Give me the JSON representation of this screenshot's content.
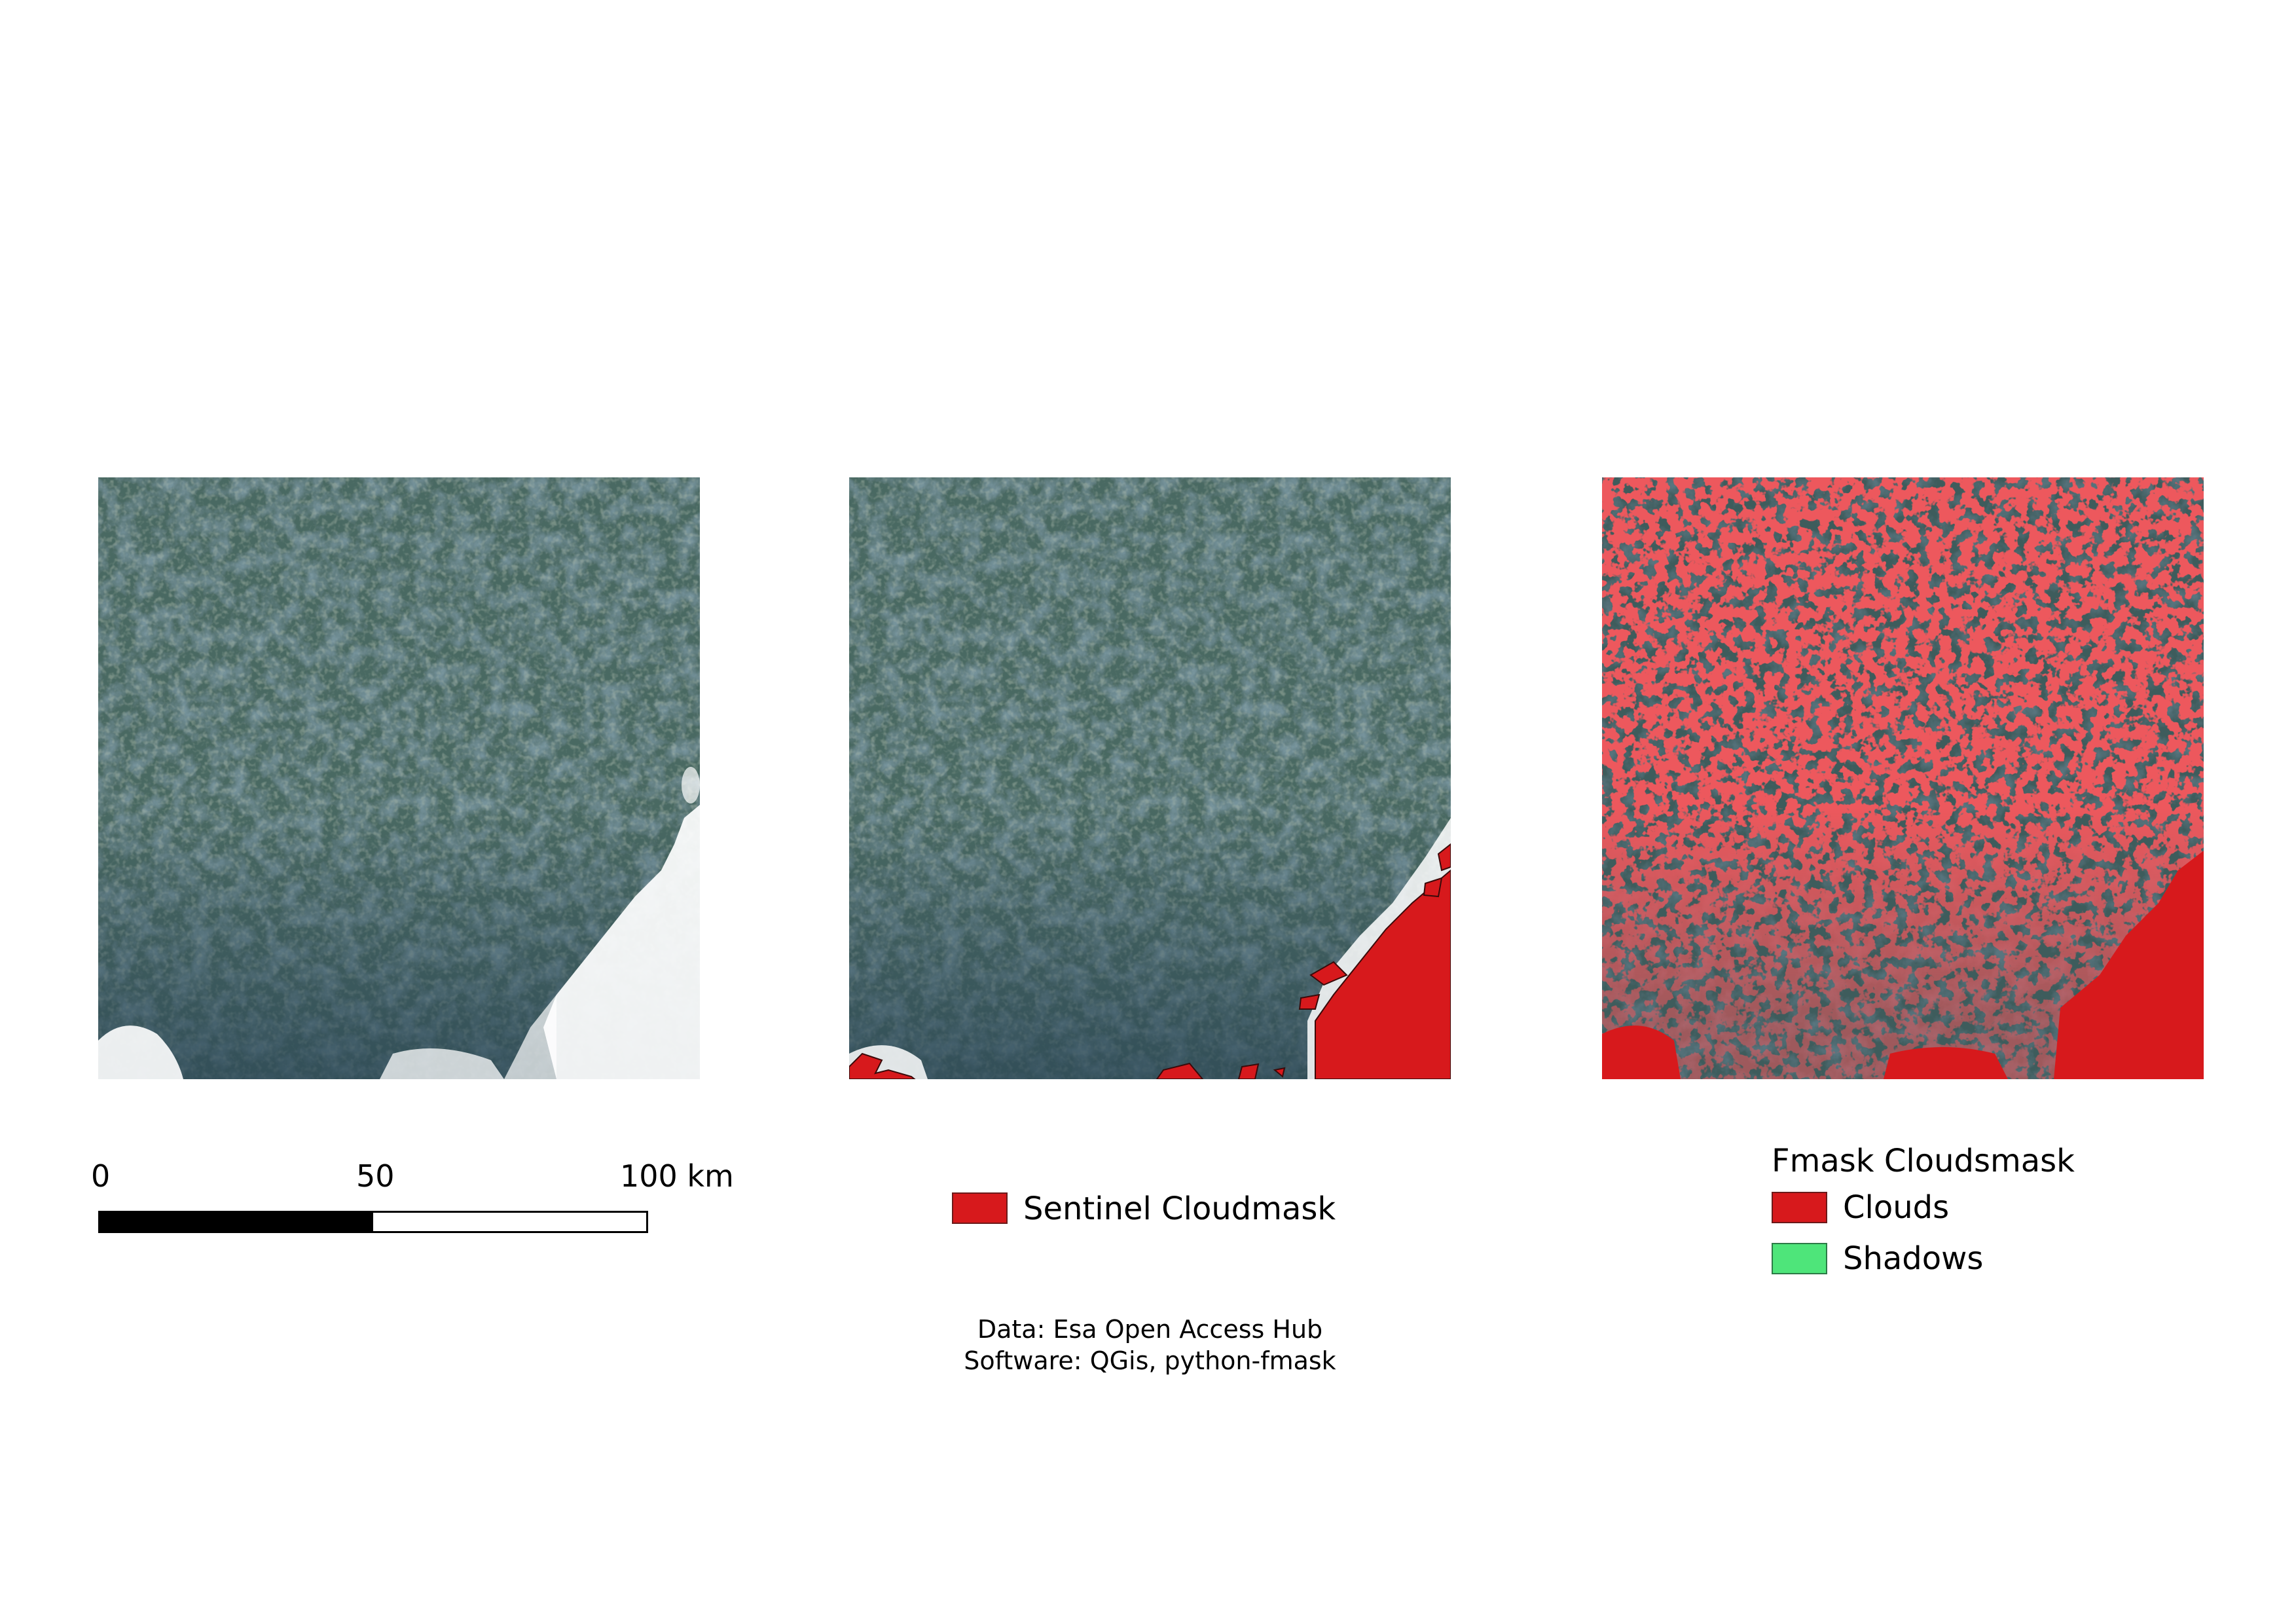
{
  "scale_bar": {
    "ticks": [
      "0",
      "50",
      "100 km"
    ]
  },
  "legend_sentinel": {
    "label": "Sentinel Cloudmask",
    "color": "#d7191c"
  },
  "legend_fmask": {
    "title": "Fmask Cloudsmask",
    "items": [
      {
        "label": "Clouds",
        "color": "#d7191c"
      },
      {
        "label": "Shadows",
        "color": "#4ee57a"
      }
    ]
  },
  "credits": {
    "line1": "Data: Esa Open Access Hub",
    "line2": "Software: QGis, python-fmask"
  },
  "colors": {
    "land": "#4a6962",
    "forest": "#2e4a55",
    "cloud": "#ffffff",
    "mask": "#d7191c"
  }
}
